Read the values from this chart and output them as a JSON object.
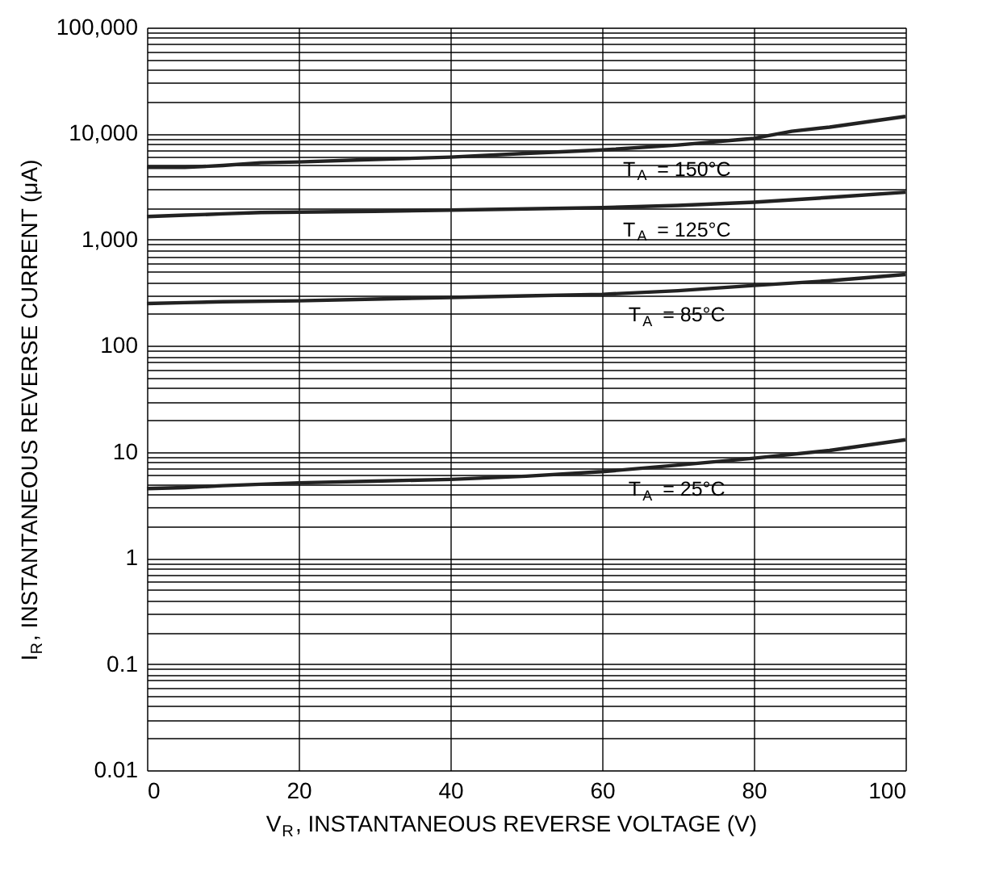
{
  "chart_data": {
    "type": "line",
    "xlabel": "V$_{R}$, INSTANTANEOUS REVERSE VOLTAGE (V)",
    "ylabel": "I$_{R}$, INSTANTANEOUS REVERSE CURRENT (μA)",
    "log": "y",
    "grid": true,
    "legend": false,
    "line_style": "solid",
    "marker": "none",
    "xlim": [
      0,
      100
    ],
    "xticks": [
      0,
      20,
      40,
      60,
      80,
      100
    ],
    "ylim": [
      0.01,
      100000
    ],
    "yticks": [
      0.01,
      {
        "value": 0.02,
        "label": null
      },
      {
        "value": 0.03,
        "label": null
      },
      {
        "value": 0.04,
        "label": null
      },
      {
        "value": 0.05,
        "label": null
      },
      {
        "value": 0.06,
        "label": null
      },
      {
        "value": 0.07,
        "label": null
      },
      {
        "value": 0.08,
        "label": null
      },
      {
        "value": 0.09,
        "label": null
      },
      0.1,
      {
        "value": 0.2,
        "label": null
      },
      {
        "value": 0.3,
        "label": null
      },
      {
        "value": 0.4,
        "label": null
      },
      {
        "value": 0.5,
        "label": null
      },
      {
        "value": 0.6,
        "label": null
      },
      {
        "value": 0.7,
        "label": null
      },
      {
        "value": 0.8,
        "label": null
      },
      {
        "value": 0.9,
        "label": null
      },
      1,
      {
        "value": 2,
        "label": null
      },
      {
        "value": 3,
        "label": null
      },
      {
        "value": 4,
        "label": null
      },
      {
        "value": 5,
        "label": null
      },
      {
        "value": 6,
        "label": null
      },
      {
        "value": 7,
        "label": null
      },
      {
        "value": 8,
        "label": null
      },
      {
        "value": 9,
        "label": null
      },
      10,
      {
        "value": 20,
        "label": null
      },
      {
        "value": 30,
        "label": null
      },
      {
        "value": 40,
        "label": null
      },
      {
        "value": 50,
        "label": null
      },
      {
        "value": 60,
        "label": null
      },
      {
        "value": 70,
        "label": null
      },
      {
        "value": 80,
        "label": null
      },
      {
        "value": 90,
        "label": null
      },
      100,
      {
        "value": 200,
        "label": null
      },
      {
        "value": 300,
        "label": null
      },
      {
        "value": 400,
        "label": null
      },
      {
        "value": 500,
        "label": null
      },
      {
        "value": 600,
        "label": null
      },
      {
        "value": 700,
        "label": null
      },
      {
        "value": 800,
        "label": null
      },
      {
        "value": 900,
        "label": null
      },
      {
        "value": 1000,
        "label": "1,000"
      },
      {
        "value": 2000,
        "label": null
      },
      {
        "value": 3000,
        "label": null
      },
      {
        "value": 4000,
        "label": null
      },
      {
        "value": 5000,
        "label": null
      },
      {
        "value": 6000,
        "label": null
      },
      {
        "value": 7000,
        "label": null
      },
      {
        "value": 8000,
        "label": null
      },
      {
        "value": 9000,
        "label": null
      },
      {
        "value": 10000,
        "label": "10,000"
      },
      {
        "value": 20000,
        "label": null
      },
      {
        "value": 30000,
        "label": null
      },
      {
        "value": 40000,
        "label": null
      },
      {
        "value": 50000,
        "label": null
      },
      {
        "value": 60000,
        "label": null
      },
      {
        "value": 70000,
        "label": null
      },
      {
        "value": 80000,
        "label": null
      },
      {
        "value": 90000,
        "label": null
      },
      {
        "value": 100000,
        "label": "100,000"
      }
    ],
    "series": [
      {
        "color": "#222222",
        "x": [
          0,
          5,
          10,
          15,
          20,
          30,
          40,
          50,
          60,
          70,
          80,
          85,
          90,
          100
        ],
        "values": [
          4800,
          4800,
          5000,
          5300,
          5400,
          5700,
          6000,
          6500,
          7000,
          7800,
          9000,
          10500,
          11500,
          14500
        ]
      },
      {
        "color": "#222222",
        "x": [
          0,
          5,
          10,
          15,
          30,
          40,
          50,
          60,
          70,
          80,
          90,
          100
        ],
        "values": [
          1650,
          1700,
          1750,
          1800,
          1850,
          1900,
          1950,
          2000,
          2100,
          2250,
          2500,
          2800
        ]
      },
      {
        "color": "#222222",
        "x": [
          0,
          5,
          10,
          20,
          30,
          40,
          50,
          60,
          70,
          80,
          90,
          100
        ],
        "values": [
          250,
          255,
          260,
          265,
          275,
          285,
          295,
          305,
          330,
          370,
          410,
          470
        ]
      },
      {
        "color": "#222222",
        "x": [
          0,
          5,
          10,
          20,
          30,
          40,
          50,
          60,
          70,
          80,
          90,
          100
        ],
        "values": [
          4.5,
          4.6,
          4.8,
          5.1,
          5.3,
          5.5,
          5.9,
          6.5,
          7.5,
          8.7,
          10.3,
          13
        ]
      }
    ],
    "annotations": [
      "T$_{A}$ = 150°C",
      "T$_{A}$ = 125°C",
      "T$_{A}$ = 85°C",
      "T$_{A}$ = 25°C"
    ]
  }
}
